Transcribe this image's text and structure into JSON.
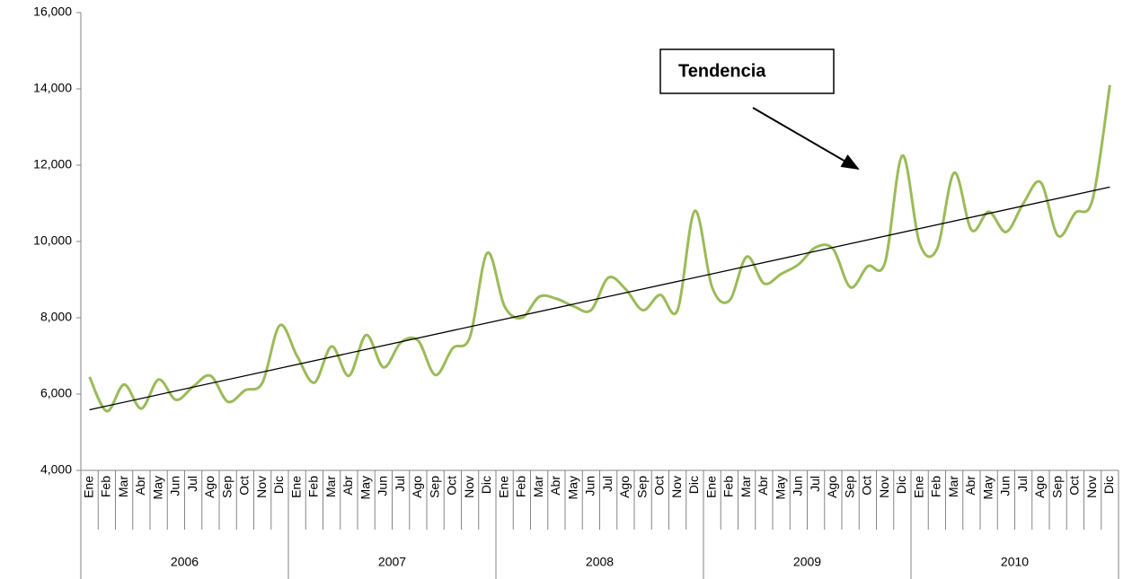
{
  "chart_data": {
    "type": "line",
    "annotation": "Tendencia",
    "categories": [
      "Ene",
      "Feb",
      "Mar",
      "Abr",
      "May",
      "Jun",
      "Jul",
      "Ago",
      "Sep",
      "Oct",
      "Nov",
      "Dic",
      "Ene",
      "Feb",
      "Mar",
      "Abr",
      "May",
      "Jun",
      "Jul",
      "Ago",
      "Sep",
      "Oct",
      "Nov",
      "Dic",
      "Ene",
      "Feb",
      "Mar",
      "Abr",
      "May",
      "Jun",
      "Jul",
      "Ago",
      "Sep",
      "Oct",
      "Nov",
      "Dic",
      "Ene",
      "Feb",
      "Mar",
      "Abr",
      "May",
      "Jun",
      "Jul",
      "Ago",
      "Sep",
      "Oct",
      "Nov",
      "Dic",
      "Ene",
      "Feb",
      "Mar",
      "Abr",
      "May",
      "Jun",
      "Jul",
      "Ago",
      "Sep",
      "Oct",
      "Nov",
      "Dic"
    ],
    "years": [
      "2006",
      "2007",
      "2008",
      "2009",
      "2010"
    ],
    "values": [
      6450,
      5550,
      6250,
      5620,
      6380,
      5850,
      6200,
      6480,
      5800,
      6100,
      6300,
      7800,
      7000,
      6300,
      7250,
      6480,
      7550,
      6700,
      7350,
      7400,
      6500,
      7200,
      7500,
      9700,
      8300,
      8000,
      8550,
      8500,
      8300,
      8200,
      9050,
      8750,
      8200,
      8600,
      8200,
      10800,
      8800,
      8450,
      9600,
      8900,
      9150,
      9400,
      9850,
      9800,
      8800,
      9350,
      9450,
      12250,
      9950,
      9800,
      11800,
      10300,
      10780,
      10250,
      11000,
      11550,
      10150,
      10750,
      11100,
      14100
    ],
    "color": "#9bbb59",
    "trendline": true,
    "trend_color": "#000000",
    "ylim": [
      4000,
      16000
    ],
    "yticks": [
      {
        "value": 4000,
        "label": "4,000"
      },
      {
        "value": 6000,
        "label": "6,000"
      },
      {
        "value": 8000,
        "label": "8,000"
      },
      {
        "value": 10000,
        "label": "10,000"
      },
      {
        "value": 12000,
        "label": "12,000"
      },
      {
        "value": 14000,
        "label": "14,000"
      },
      {
        "value": 16000,
        "label": "16,000"
      }
    ]
  }
}
